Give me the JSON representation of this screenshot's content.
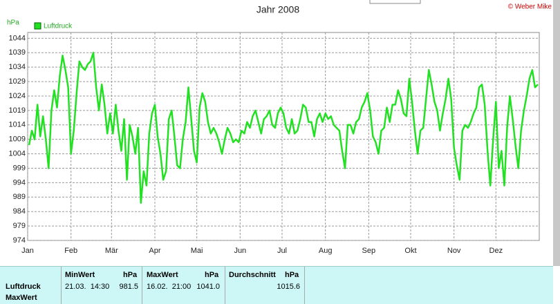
{
  "chart_data": {
    "type": "line",
    "title": "Jahr 2008",
    "credit": "© Weber Mike",
    "y_label": "hPa",
    "x": [
      1,
      3,
      5,
      7,
      9,
      11,
      13,
      15,
      17,
      19,
      21,
      23,
      25,
      27,
      29,
      31,
      33,
      35,
      37,
      39,
      41,
      43,
      45,
      47,
      49,
      51,
      53,
      55,
      57,
      59,
      61,
      63,
      65,
      67,
      69,
      71,
      73,
      75,
      77,
      79,
      81,
      83,
      85,
      87,
      89,
      91,
      93,
      95,
      97,
      99,
      101,
      103,
      105,
      107,
      109,
      111,
      113,
      115,
      117,
      119,
      121,
      123,
      125,
      127,
      129,
      131,
      133,
      135,
      137,
      139,
      141,
      143,
      145,
      147,
      149,
      151,
      153,
      155,
      157,
      159,
      161,
      163,
      165,
      167,
      169,
      171,
      173,
      175,
      177,
      179,
      181,
      183,
      185,
      187,
      189,
      191,
      193,
      195,
      197,
      199,
      201,
      203,
      205,
      207,
      209,
      211,
      213,
      215,
      217,
      219,
      221,
      223,
      225,
      227,
      229,
      231,
      233,
      235,
      237,
      239,
      241,
      243,
      245,
      247,
      249,
      251,
      253,
      255,
      257,
      259,
      261,
      263,
      265,
      267,
      269,
      271,
      273,
      275,
      277,
      279,
      281,
      283,
      285,
      287,
      289,
      291,
      293,
      295,
      297,
      299,
      301,
      303,
      305,
      307,
      309,
      311,
      313,
      315,
      317,
      319,
      321,
      323,
      325,
      327,
      329,
      331,
      333,
      335,
      337,
      339,
      341,
      343,
      345,
      347,
      349,
      351,
      353,
      355,
      357,
      359,
      361,
      363,
      365
    ],
    "series": [
      {
        "name": "Luftdruck",
        "color": "#22e022",
        "values": [
          1007,
          1012,
          1009,
          1021,
          1010,
          1017,
          1009,
          999,
          1019,
          1026,
          1020,
          1031,
          1038,
          1033,
          1027,
          1004,
          1012,
          1025,
          1036,
          1034,
          1033,
          1035,
          1036,
          1039,
          1027,
          1019,
          1028,
          1021,
          1011,
          1018,
          1011,
          1021,
          1012,
          1005,
          1016,
          995,
          1014,
          1010,
          1004,
          1013,
          987,
          998,
          993,
          1011,
          1018,
          1021,
          1010,
          1004,
          995,
          998,
          1016,
          1019,
          1010,
          1000,
          999,
          1009,
          1015,
          1027,
          1016,
          1005,
          1001,
          1020,
          1025,
          1022,
          1015,
          1011,
          1013,
          1011,
          1008,
          1004,
          1009,
          1013,
          1011,
          1008,
          1009,
          1008,
          1012,
          1011,
          1015,
          1013,
          1017,
          1019,
          1015,
          1011,
          1016,
          1017,
          1019,
          1014,
          1013,
          1018,
          1020,
          1018,
          1013,
          1011,
          1016,
          1011,
          1012,
          1016,
          1021,
          1020,
          1015,
          1015,
          1010,
          1016,
          1018,
          1015,
          1018,
          1016,
          1017,
          1014,
          1013,
          1012,
          1005,
          999,
          1014,
          1014,
          1011,
          1015,
          1016,
          1020,
          1022,
          1025,
          1019,
          1010,
          1008,
          1004,
          1012,
          1013,
          1020,
          1015,
          1021,
          1021,
          1026,
          1023,
          1018,
          1017,
          1030,
          1022,
          1012,
          1004,
          1012,
          1013,
          1023,
          1033,
          1028,
          1022,
          1019,
          1012,
          1018,
          1023,
          1030,
          1023,
          1006,
          1000,
          995,
          1012,
          1014,
          1013,
          1015,
          1018,
          1020,
          1027,
          1028,
          1021,
          1005,
          993,
          1009,
          1022,
          999,
          1005,
          993,
          1013,
          1024,
          1016,
          1007,
          999,
          1012,
          1019,
          1024,
          1030,
          1033,
          1027,
          1028
        ]
      }
    ],
    "xlim": [
      0,
      366
    ],
    "xticks": [
      {
        "value": 0,
        "label": "Jan"
      },
      {
        "value": 31,
        "label": "Feb"
      },
      {
        "value": 60,
        "label": "Mär"
      },
      {
        "value": 91,
        "label": "Apr"
      },
      {
        "value": 121,
        "label": "Mai"
      },
      {
        "value": 152,
        "label": "Jun"
      },
      {
        "value": 182,
        "label": "Jul"
      },
      {
        "value": 213,
        "label": "Aug"
      },
      {
        "value": 244,
        "label": "Sep"
      },
      {
        "value": 274,
        "label": "Okt"
      },
      {
        "value": 305,
        "label": "Nov"
      },
      {
        "value": 335,
        "label": "Dez"
      }
    ],
    "ylim": [
      974,
      1046
    ],
    "yticks": [
      974,
      979,
      984,
      989,
      994,
      999,
      1004,
      1009,
      1014,
      1019,
      1024,
      1029,
      1034,
      1039,
      1044
    ],
    "grid": true,
    "legend": "top-left"
  },
  "summary_table": {
    "headers": [
      "MinWert",
      "hPa",
      "MaxWert",
      "hPa",
      "Durchschnitt",
      "hPa"
    ],
    "rows": [
      [
        "Luftdruck",
        "21.03.  14:30",
        "981.5",
        "16.02.  21:00",
        "1041.0",
        "1015.6"
      ],
      [
        "MaxWert"
      ]
    ]
  }
}
